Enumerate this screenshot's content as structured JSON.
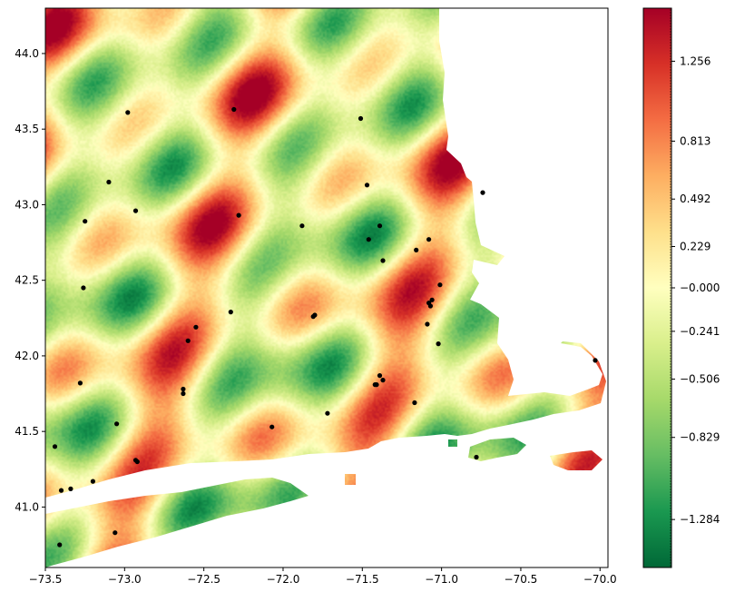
{
  "chart_data": {
    "type": "heatmap",
    "title": "",
    "xlabel": "",
    "ylabel": "",
    "xlim": [
      -73.5,
      -69.95
    ],
    "ylim": [
      40.6,
      44.3
    ],
    "x_ticks": [
      "−73.5",
      "−73.0",
      "−72.5",
      "−72.0",
      "−71.5",
      "−71.0",
      "−70.5",
      "−70.0"
    ],
    "x_tick_values": [
      -73.5,
      -73.0,
      -72.5,
      -72.0,
      -71.5,
      -71.0,
      -70.5,
      -70.0
    ],
    "y_ticks": [
      "41.0",
      "41.5",
      "42.0",
      "42.5",
      "43.0",
      "43.5",
      "44.0"
    ],
    "y_tick_values": [
      41.0,
      41.5,
      42.0,
      42.5,
      43.0,
      43.5,
      44.0
    ],
    "colormap": "RdYlGn_r",
    "colors": {
      "low": "#006837",
      "mid_low": "#66bd63",
      "mid": "#ffffbf",
      "mid_high": "#f46d43",
      "high": "#a50026",
      "station": "#000000"
    },
    "colorbar": {
      "range": [
        -1.55,
        1.55
      ],
      "tick_labels": [
        "1.256",
        "0.813",
        "0.492",
        "0.229",
        "−0.000",
        "−0.241",
        "−0.506",
        "−0.829",
        "−1.284"
      ],
      "tick_values": [
        1.256,
        0.813,
        0.492,
        0.229,
        0.0,
        -0.241,
        -0.506,
        -0.829,
        -1.284
      ]
    },
    "stations": [
      {
        "lon": -72.98,
        "lat": 43.61
      },
      {
        "lon": -72.31,
        "lat": 43.63
      },
      {
        "lon": -71.51,
        "lat": 43.57
      },
      {
        "lon": -73.1,
        "lat": 43.15
      },
      {
        "lon": -72.93,
        "lat": 42.96
      },
      {
        "lon": -73.25,
        "lat": 42.89
      },
      {
        "lon": -72.28,
        "lat": 42.93
      },
      {
        "lon": -71.88,
        "lat": 42.86
      },
      {
        "lon": -71.47,
        "lat": 43.13
      },
      {
        "lon": -71.39,
        "lat": 42.86
      },
      {
        "lon": -71.46,
        "lat": 42.77
      },
      {
        "lon": -71.08,
        "lat": 42.77
      },
      {
        "lon": -71.16,
        "lat": 42.7
      },
      {
        "lon": -71.37,
        "lat": 42.63
      },
      {
        "lon": -70.74,
        "lat": 43.08
      },
      {
        "lon": -73.26,
        "lat": 42.45
      },
      {
        "lon": -71.01,
        "lat": 42.47
      },
      {
        "lon": -71.08,
        "lat": 42.35
      },
      {
        "lon": -71.06,
        "lat": 42.37
      },
      {
        "lon": -71.07,
        "lat": 42.33
      },
      {
        "lon": -72.33,
        "lat": 42.29
      },
      {
        "lon": -71.8,
        "lat": 42.27
      },
      {
        "lon": -71.81,
        "lat": 42.26
      },
      {
        "lon": -71.09,
        "lat": 42.21
      },
      {
        "lon": -72.55,
        "lat": 42.19
      },
      {
        "lon": -72.6,
        "lat": 42.1
      },
      {
        "lon": -71.02,
        "lat": 42.08
      },
      {
        "lon": -70.03,
        "lat": 41.97
      },
      {
        "lon": -71.39,
        "lat": 41.87
      },
      {
        "lon": -71.37,
        "lat": 41.84
      },
      {
        "lon": -71.42,
        "lat": 41.81
      },
      {
        "lon": -71.41,
        "lat": 41.81
      },
      {
        "lon": -73.28,
        "lat": 41.82
      },
      {
        "lon": -72.63,
        "lat": 41.78
      },
      {
        "lon": -72.63,
        "lat": 41.75
      },
      {
        "lon": -71.17,
        "lat": 41.69
      },
      {
        "lon": -71.72,
        "lat": 41.62
      },
      {
        "lon": -73.05,
        "lat": 41.55
      },
      {
        "lon": -72.07,
        "lat": 41.53
      },
      {
        "lon": -73.44,
        "lat": 41.4
      },
      {
        "lon": -72.93,
        "lat": 41.31
      },
      {
        "lon": -72.92,
        "lat": 41.3
      },
      {
        "lon": -70.78,
        "lat": 41.33
      },
      {
        "lon": -73.2,
        "lat": 41.17
      },
      {
        "lon": -73.4,
        "lat": 41.11
      },
      {
        "lon": -73.34,
        "lat": 41.12
      },
      {
        "lon": -73.06,
        "lat": 40.83
      },
      {
        "lon": -73.41,
        "lat": 40.75
      }
    ]
  }
}
